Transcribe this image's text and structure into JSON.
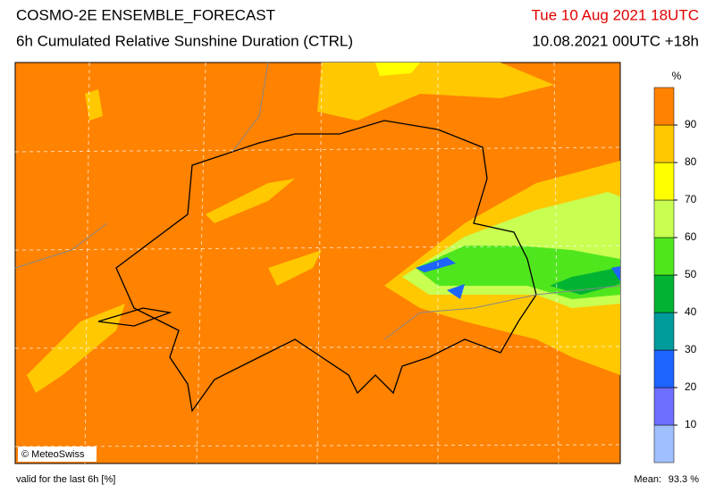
{
  "header": {
    "title": "COSMO-2E ENSEMBLE_FORECAST",
    "subtitle": "6h Cumulated Relative Sunshine Duration (CTRL)",
    "valid_time": "Tue 10 Aug 2021 18UTC",
    "run_info": "10.08.2021 00UTC +18h"
  },
  "colorbar": {
    "unit": "%",
    "ticks": [
      10,
      20,
      30,
      40,
      50,
      60,
      70,
      80,
      90
    ],
    "colors": [
      "#a0bfff",
      "#6e6eff",
      "#1e64ff",
      "#009b9b",
      "#00b432",
      "#50e61e",
      "#c8ff50",
      "#ffff00",
      "#ffc800",
      "#ff8200"
    ]
  },
  "map": {
    "copyright": "© MeteoSwiss"
  },
  "footer": {
    "note": "valid for the last 6h [%]",
    "mean_label": "Mean:",
    "mean_value": "93.3 %"
  }
}
